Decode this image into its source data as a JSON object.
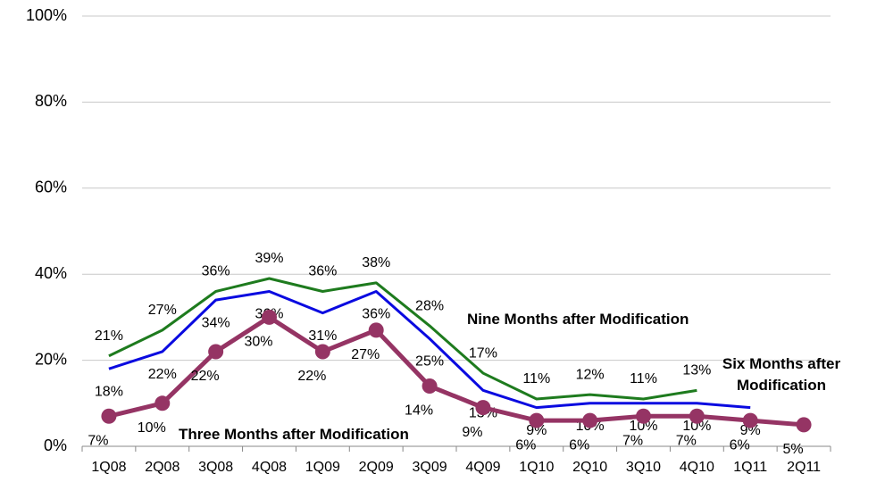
{
  "chart_data": {
    "type": "line",
    "categories": [
      "1Q08",
      "2Q08",
      "3Q08",
      "4Q08",
      "1Q09",
      "2Q09",
      "3Q09",
      "4Q09",
      "1Q10",
      "2Q10",
      "3Q10",
      "4Q10",
      "1Q11",
      "2Q11"
    ],
    "ylim": [
      0,
      100
    ],
    "yticks": [
      {
        "value": 0,
        "label": "0%"
      },
      {
        "value": 20,
        "label": "20%"
      },
      {
        "value": 40,
        "label": "40%"
      },
      {
        "value": 60,
        "label": "60%"
      },
      {
        "value": 80,
        "label": "80%"
      },
      {
        "value": 100,
        "label": "100%"
      }
    ],
    "grid": true,
    "series": [
      {
        "name": "Nine Months after Modification",
        "color": "#1e7b1e",
        "values": [
          21,
          27,
          36,
          39,
          36,
          38,
          28,
          17,
          11,
          12,
          11,
          13,
          null,
          null
        ],
        "value_labels": [
          "21%",
          "27%",
          "36%",
          "39%",
          "36%",
          "38%",
          "28%",
          "17%",
          "11%",
          "12%",
          "11%",
          "13%",
          null,
          null
        ]
      },
      {
        "name": "Six Months after Modification",
        "color": "#0a0ae0",
        "values": [
          18,
          22,
          34,
          36,
          31,
          36,
          25,
          13,
          9,
          10,
          10,
          10,
          9,
          null
        ],
        "value_labels": [
          "18%",
          "22%",
          "34%",
          "36%",
          "31%",
          "36%",
          "25%",
          "13%",
          "9%",
          "10%",
          "10%",
          "10%",
          "9%",
          null
        ]
      },
      {
        "name": "Three Months after Modification",
        "color": "#953464",
        "values": [
          7,
          10,
          22,
          30,
          22,
          27,
          14,
          9,
          6,
          6,
          7,
          7,
          6,
          5
        ],
        "value_labels": [
          "7%",
          "10%",
          "22%",
          "30%",
          "22%",
          "27%",
          "14%",
          "9%",
          "6%",
          "6%",
          "7%",
          "7%",
          "6%",
          "5%"
        ]
      }
    ]
  }
}
